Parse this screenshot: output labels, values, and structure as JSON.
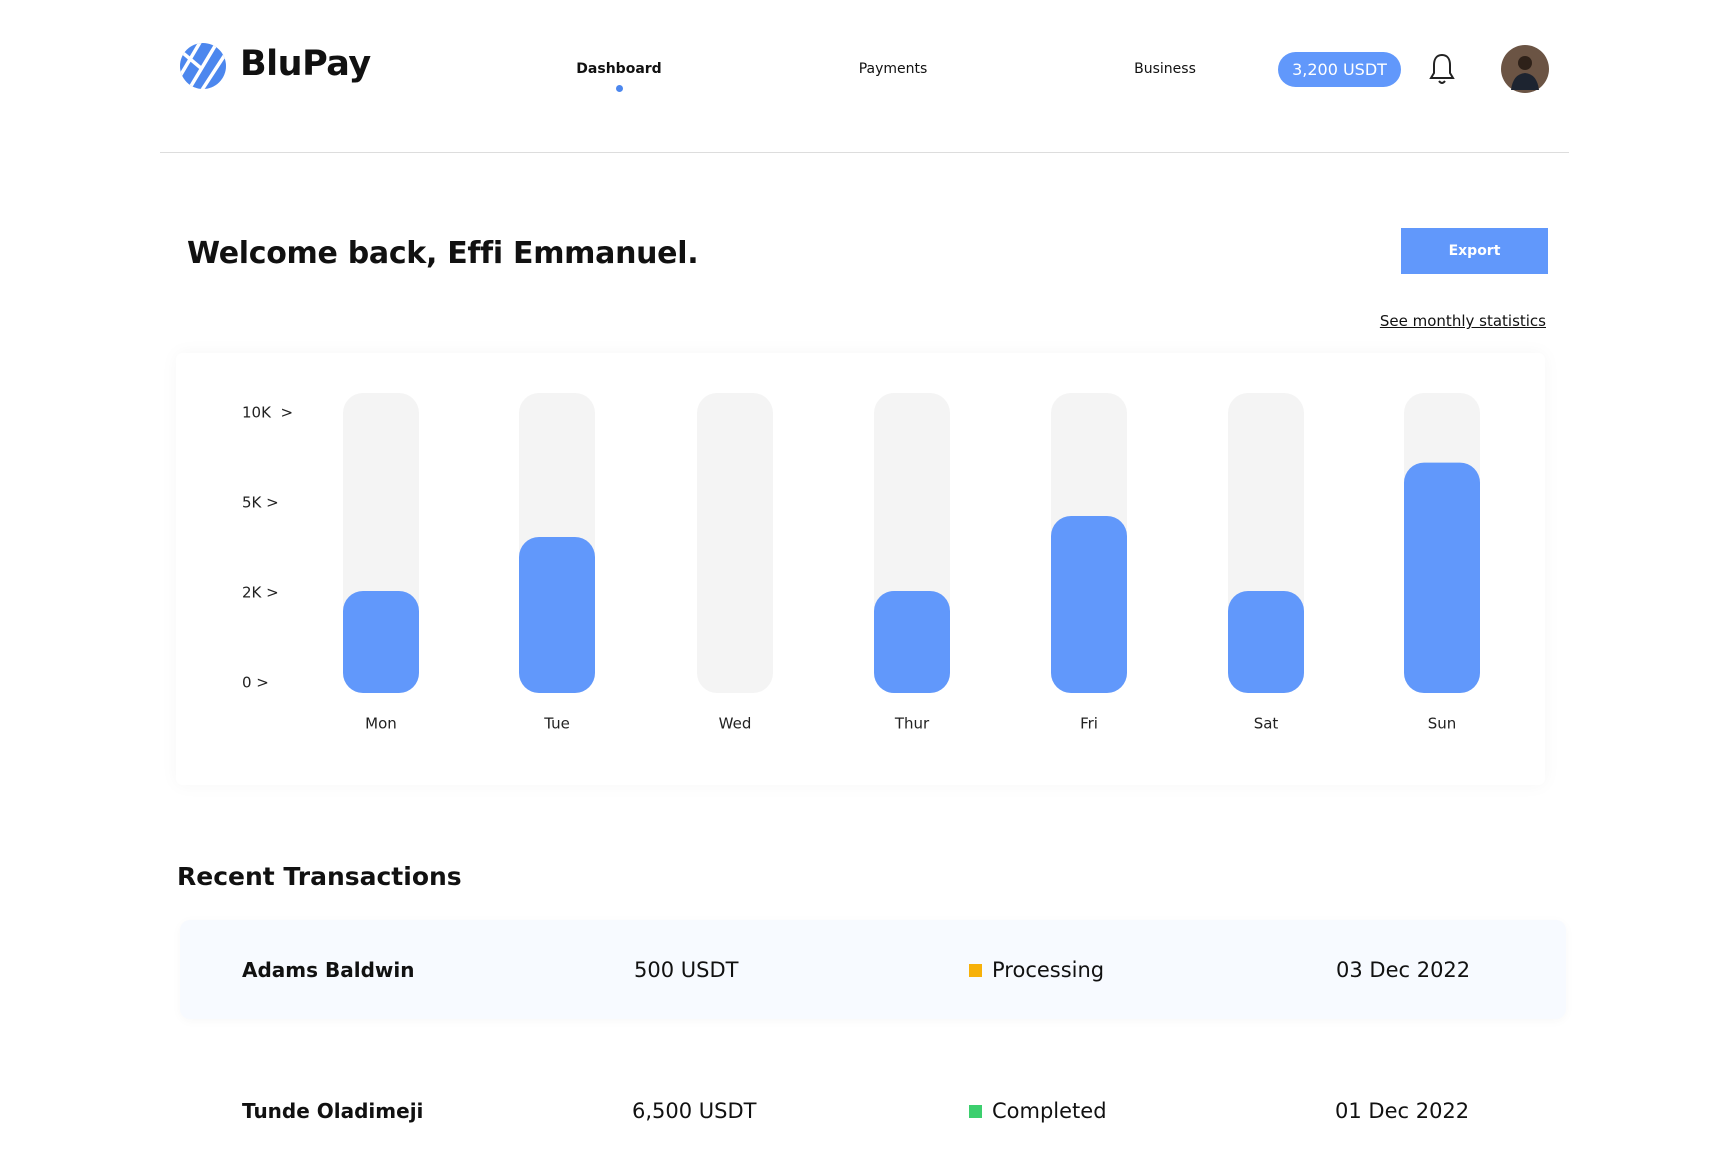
{
  "header": {
    "brand": "BluPay",
    "nav": [
      "Dashboard",
      "Payments",
      "Business"
    ],
    "balance": "3,200 USDT"
  },
  "welcome": "Welcome back, Effi Emmanuel.",
  "export_button": "Export",
  "monthly_link": "See monthly statistics",
  "chart_data": {
    "type": "bar",
    "categories": [
      "Mon",
      "Tue",
      "Wed",
      "Thur",
      "Fri",
      "Sat",
      "Sun"
    ],
    "values": [
      2400,
      4200,
      0,
      2400,
      4900,
      2400,
      7800
    ],
    "color": "#6198fb",
    "track_color": "#f4f4f4",
    "ylim": [
      0,
      10000
    ],
    "yticks": [
      {
        "value": 0,
        "label": "0 >"
      },
      {
        "value": 2000,
        "label": "2K >"
      },
      {
        "value": 5000,
        "label": "5K >"
      },
      {
        "value": 10000,
        "label": "10K  >"
      }
    ]
  },
  "transactions_title": "Recent Transactions",
  "transactions": [
    {
      "name": "Adams Baldwin",
      "amount": "500 USDT",
      "status": "Processing",
      "status_color": "#f7b10a",
      "date": "03 Dec 2022"
    },
    {
      "name": "Tunde Oladimeji",
      "amount": "6,500 USDT",
      "status": "Completed",
      "status_color": "#3ccf6e",
      "date": "01 Dec 2022"
    }
  ]
}
